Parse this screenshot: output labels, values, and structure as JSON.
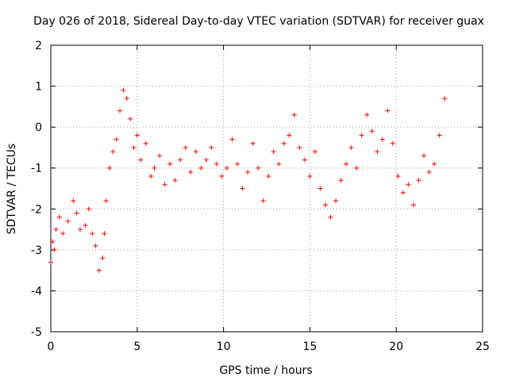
{
  "chart_data": {
    "type": "scatter",
    "title": "Day 026 of 2018, Sidereal Day-to-day VTEC variation (SDTVAR) for receiver guax",
    "xlabel": "GPS time / hours",
    "ylabel": "SDTVAR / TECUs",
    "xlim": [
      0,
      25
    ],
    "ylim": [
      -5,
      2
    ],
    "xticks": [
      "0",
      "5",
      "10",
      "15",
      "20",
      "25"
    ],
    "yticks": [
      "2",
      "1",
      "0",
      "-1",
      "-2",
      "-3",
      "-4",
      "-5"
    ],
    "grid": true,
    "marker": "+",
    "color": "#ff0000",
    "series": [
      {
        "name": "SDTVAR",
        "x": [
          0.0,
          0.1,
          0.2,
          0.3,
          0.5,
          0.7,
          1.0,
          1.3,
          1.5,
          1.7,
          2.0,
          2.2,
          2.4,
          2.6,
          2.8,
          3.0,
          3.1,
          3.2,
          3.4,
          3.6,
          3.8,
          4.0,
          4.2,
          4.4,
          4.6,
          4.8,
          5.0,
          5.2,
          5.5,
          5.8,
          6.0,
          6.3,
          6.6,
          6.9,
          7.2,
          7.5,
          7.8,
          8.1,
          8.4,
          8.7,
          9.0,
          9.3,
          9.6,
          9.9,
          10.2,
          10.5,
          10.8,
          11.1,
          11.4,
          11.7,
          12.0,
          12.3,
          12.6,
          12.9,
          13.2,
          13.5,
          13.8,
          14.1,
          14.4,
          14.7,
          15.0,
          15.3,
          15.6,
          15.9,
          16.2,
          16.5,
          16.8,
          17.1,
          17.4,
          17.7,
          18.0,
          18.3,
          18.6,
          18.9,
          19.2,
          19.5,
          19.8,
          20.1,
          20.4,
          20.7,
          21.0,
          21.3,
          21.6,
          21.9,
          22.2,
          22.5,
          22.8
        ],
        "values": [
          -3.3,
          -2.8,
          -3.0,
          -2.5,
          -2.2,
          -2.6,
          -2.3,
          -1.8,
          -2.1,
          -2.5,
          -2.4,
          -2.0,
          -2.6,
          -2.9,
          -3.5,
          -3.2,
          -2.6,
          -1.8,
          -1.0,
          -0.6,
          -0.3,
          0.4,
          0.9,
          0.7,
          0.2,
          -0.5,
          -0.2,
          -0.8,
          -0.4,
          -1.2,
          -1.0,
          -0.7,
          -1.4,
          -0.9,
          -1.3,
          -0.8,
          -0.5,
          -1.1,
          -0.6,
          -1.0,
          -0.8,
          -0.5,
          -0.9,
          -1.2,
          -1.0,
          -0.3,
          -0.9,
          -1.5,
          -1.1,
          -0.4,
          -1.0,
          -1.8,
          -1.2,
          -0.6,
          -0.9,
          -0.4,
          -0.2,
          0.3,
          -0.5,
          -0.8,
          -1.2,
          -0.6,
          -1.5,
          -1.9,
          -2.2,
          -1.8,
          -1.3,
          -0.9,
          -0.5,
          -1.0,
          -0.2,
          0.3,
          -0.1,
          -0.6,
          -0.3,
          0.4,
          -0.4,
          -1.2,
          -1.6,
          -1.4,
          -1.9,
          -1.3,
          -0.7,
          -1.1,
          -0.9,
          -0.2,
          0.7
        ]
      }
    ]
  }
}
